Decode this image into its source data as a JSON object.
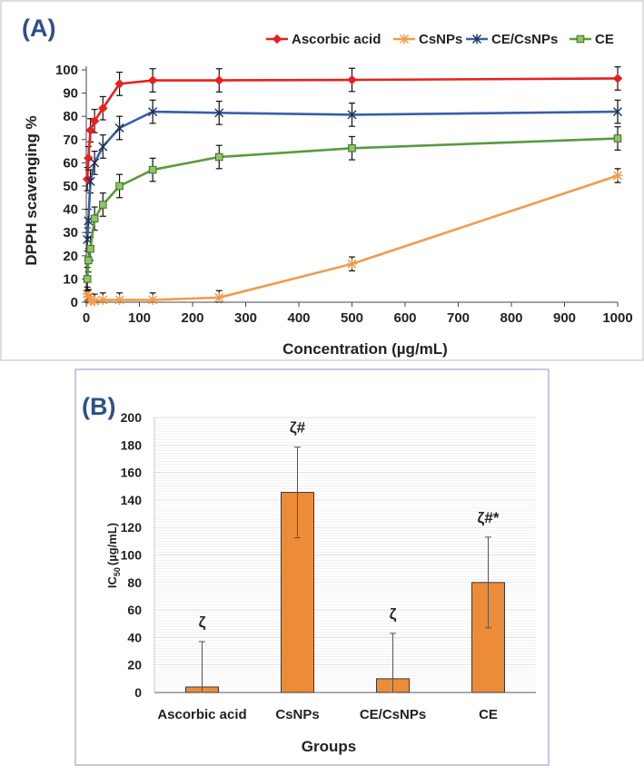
{
  "chart_data": [
    {
      "type": "line",
      "panel_label": "(A)",
      "title": "",
      "xlabel": "Concentration (µg/mL)",
      "ylabel": "DPPH scavenging %",
      "xlim": [
        0,
        1000
      ],
      "ylim": [
        0,
        100
      ],
      "xticks": [
        "0",
        "100",
        "200",
        "300",
        "400",
        "500",
        "600",
        "700",
        "800",
        "900",
        "1000"
      ],
      "yticks": [
        "0",
        "10",
        "20",
        "30",
        "40",
        "50",
        "60",
        "70",
        "80",
        "90",
        "100"
      ],
      "legend_position": "top",
      "series": [
        {
          "name": "Ascorbic acid",
          "color": "#e8201f",
          "marker": "diamond",
          "x": [
            1.95,
            3.9,
            7.8,
            15.6,
            31.25,
            62.5,
            125,
            250,
            500,
            1000
          ],
          "y": [
            53,
            62,
            74,
            78,
            83.5,
            94,
            95.5,
            95.5,
            95.7,
            96.3
          ],
          "err": [
            5,
            5,
            5,
            5,
            5,
            5,
            5,
            5,
            5,
            5
          ]
        },
        {
          "name": "CsNPs",
          "color": "#f39a4a",
          "marker": "asterisk",
          "x": [
            1.95,
            3.9,
            7.8,
            15.6,
            31.25,
            62.5,
            125,
            250,
            500,
            1000
          ],
          "y": [
            3.5,
            2.5,
            0.5,
            0.5,
            1,
            1,
            1,
            2,
            16.5,
            54.5
          ],
          "err": [
            3,
            3,
            3,
            3,
            3,
            3,
            3,
            3,
            3,
            3
          ]
        },
        {
          "name": "CE/CsNPs",
          "color": "#3a5ea3",
          "marker": "star",
          "x": [
            1.95,
            3.9,
            7.8,
            15.6,
            31.25,
            62.5,
            125,
            250,
            500,
            1000
          ],
          "y": [
            27,
            35,
            52,
            60,
            67,
            75,
            82,
            81.5,
            80.7,
            82
          ],
          "err": [
            5,
            5,
            5,
            5,
            5,
            5,
            5,
            5,
            5,
            5
          ]
        },
        {
          "name": "CE",
          "color": "#5a9a3c",
          "marker": "square",
          "x": [
            1.95,
            3.9,
            7.8,
            15.6,
            31.25,
            62.5,
            125,
            250,
            500,
            1000
          ],
          "y": [
            10,
            18,
            23,
            36,
            42,
            50,
            57,
            62.5,
            66.3,
            70.5
          ],
          "err": [
            5,
            5,
            5,
            5,
            5,
            5,
            5,
            5,
            5,
            5
          ]
        }
      ]
    },
    {
      "type": "bar",
      "panel_label": "(B)",
      "title": "",
      "xlabel": "Groups",
      "ylabel_main": "IC",
      "ylabel_sub": "50",
      "ylabel_unit": "(µg/mL)",
      "ylim": [
        0,
        200
      ],
      "yticks": [
        "0",
        "20",
        "40",
        "60",
        "80",
        "100",
        "120",
        "140",
        "160",
        "180",
        "200"
      ],
      "bar_color": "#ed8c38",
      "categories": [
        "Ascorbic acid",
        "CsNPs",
        "CE/CsNPs",
        "CE"
      ],
      "values": [
        4,
        145.5,
        10,
        80
      ],
      "err": [
        33,
        33,
        33,
        33
      ],
      "annotations": [
        "ζ",
        "ζ#",
        "ζ",
        "ζ#*"
      ]
    }
  ]
}
